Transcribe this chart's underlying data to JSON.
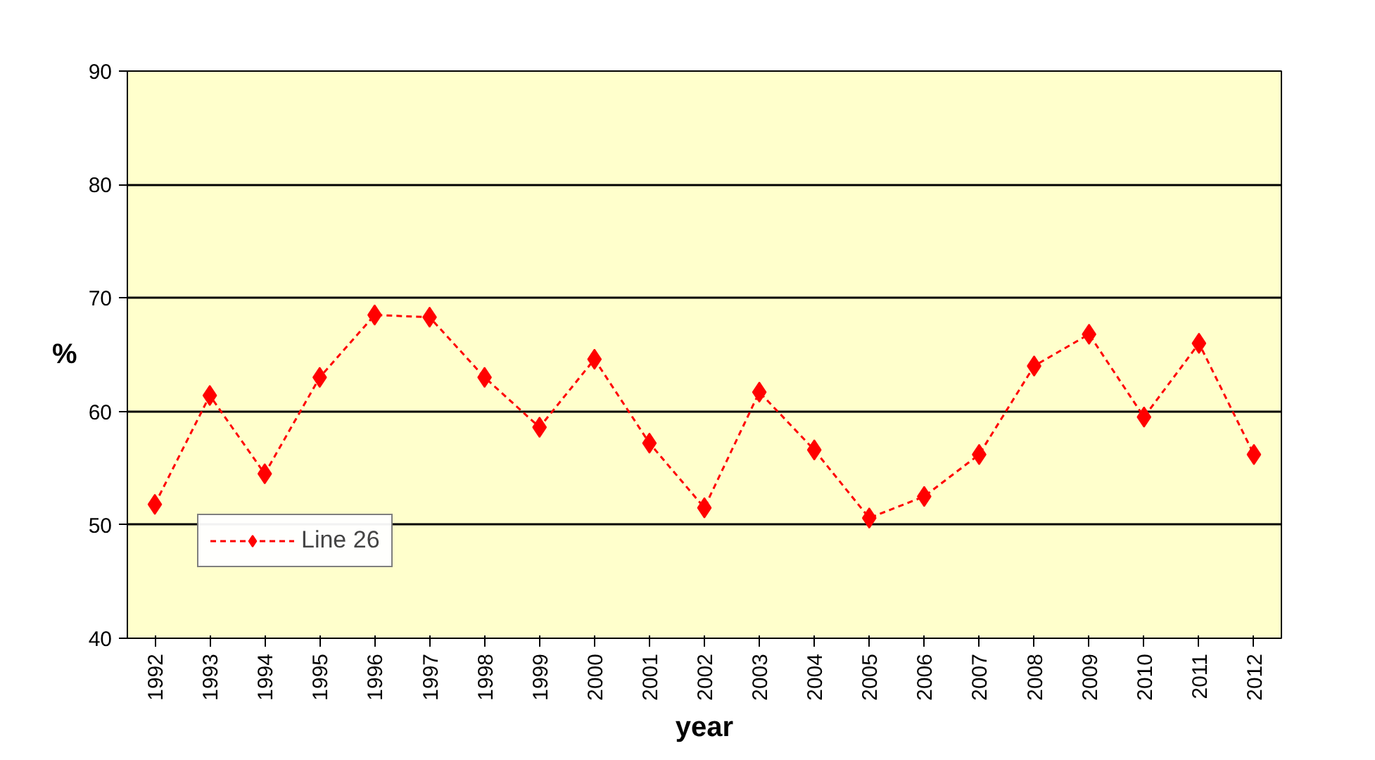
{
  "chart_data": {
    "type": "line",
    "xlabel": "year",
    "ylabel": "%",
    "categories": [
      "1992",
      "1993",
      "1994",
      "1995",
      "1996",
      "1997",
      "1998",
      "1999",
      "2000",
      "2001",
      "2002",
      "2003",
      "2004",
      "2005",
      "2006",
      "2007",
      "2008",
      "2009",
      "2010",
      "2011",
      "2012"
    ],
    "series": [
      {
        "name": "Line 26",
        "color": "#ff0000",
        "values": [
          51.8,
          61.4,
          54.5,
          63,
          68.5,
          68.3,
          63,
          58.6,
          64.6,
          57.2,
          51.5,
          61.7,
          56.6,
          50.6,
          52.5,
          56.2,
          64,
          66.8,
          59.5,
          66,
          56.2
        ]
      }
    ],
    "ylim": [
      40,
      90
    ],
    "yticks": [
      40,
      50,
      60,
      70,
      80,
      90
    ],
    "grid": "y",
    "legend": "bottom left",
    "marker": "diamond",
    "line_style": "dashed"
  }
}
